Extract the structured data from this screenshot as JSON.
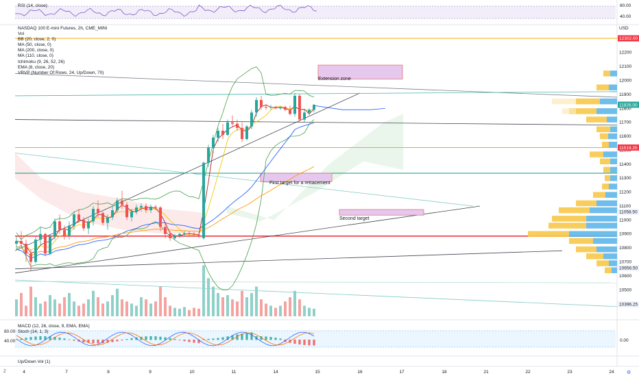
{
  "header": {
    "symbol_title": "NASDAQ 100 E-mini Futures, 2h, CME_MINI",
    "currency": "USD"
  },
  "indicators": [
    "Vol",
    "BB (20, close, 2, 0)",
    "MA (50, close, 0)",
    "MA (200, close, 0)",
    "MA (110, close, 0)",
    "Ichimoku (9, 26, 52, 26)",
    "EMA (8, close, 20)",
    "VRVP (Number Of Rows, 24, Up/Down, 70)"
  ],
  "panes": {
    "rsi_label": "RSI (14, close)",
    "macd_label": "MACD (12, 26, close, 9, EMA, EMA)",
    "stoch_label": "Stoch (14, 1, 3)",
    "updown_label": "Up/Down Vol (1)"
  },
  "annotations": {
    "extension_zone": "Extension zone",
    "first_target": "First target for a retracement",
    "second_target": "Second target"
  },
  "toolbar": {
    "left_glyph": "Z",
    "right_glyph": "⚙"
  },
  "colors": {
    "up": "#26a69a",
    "down": "#ef5350",
    "vol_up": "#8fd1c8",
    "vol_down": "#f4a3a1",
    "zone": "#e6c8ef",
    "zone_border": "#e57373",
    "orange_line": "#f7a800",
    "red_line": "#f23645",
    "teal_line": "#089981",
    "current_price_bg": "#26a69a",
    "vrvp_up": "#5fb6e8",
    "vrvp_down": "#f8c84a"
  },
  "chart_data": [
    {
      "type": "candlestick",
      "title": "NASDAQ 100 E-mini Futures, 2h, CME_MINI",
      "y_axis_ticks": [
        12300,
        12200,
        12100,
        12000,
        11900,
        11800,
        11700,
        11600,
        11500,
        11400,
        11300,
        11200,
        11100,
        11000,
        10900,
        10800,
        10700,
        10600,
        10500,
        10400
      ],
      "ylim": [
        10310,
        12390
      ],
      "x_axis_ticks": [
        "4",
        "7",
        "8",
        "9",
        "10",
        "11",
        "14",
        "15",
        "16",
        "17",
        "18",
        "21",
        "22",
        "23",
        "24"
      ],
      "price_labels": [
        {
          "value": "12302.00",
          "kind": "orange"
        },
        {
          "value": "11826.00",
          "kind": "current"
        },
        {
          "value": "11519.25",
          "kind": "orange"
        },
        {
          "value": "11058.50",
          "kind": "plain"
        },
        {
          "value": "10656.50",
          "kind": "plain"
        },
        {
          "value": "10396.25",
          "kind": "plain"
        }
      ],
      "horizontal_levels": [
        {
          "price": 12302,
          "color": "orange"
        },
        {
          "price": 11519.25,
          "color": "orange"
        },
        {
          "price": 11335,
          "color": "teal"
        },
        {
          "price": 10885,
          "color": "red"
        }
      ],
      "candles": [
        [
          10830,
          10880,
          10790,
          10850
        ],
        [
          10850,
          10920,
          10800,
          10830
        ],
        [
          10830,
          10860,
          10700,
          10760
        ],
        [
          10760,
          10790,
          10640,
          10700
        ],
        [
          10700,
          10880,
          10690,
          10860
        ],
        [
          10860,
          10950,
          10820,
          10900
        ],
        [
          10900,
          10910,
          10740,
          10760
        ],
        [
          10760,
          10900,
          10750,
          10880
        ],
        [
          10880,
          11010,
          10860,
          10990
        ],
        [
          10990,
          11040,
          10900,
          10930
        ],
        [
          10930,
          10960,
          10860,
          10890
        ],
        [
          10890,
          10990,
          10860,
          10960
        ],
        [
          10960,
          11060,
          10930,
          11040
        ],
        [
          11040,
          11080,
          10980,
          11000
        ],
        [
          11000,
          11020,
          10920,
          10940
        ],
        [
          10940,
          11010,
          10900,
          10990
        ],
        [
          10990,
          11100,
          10960,
          11080
        ],
        [
          11080,
          11140,
          11020,
          11050
        ],
        [
          11050,
          11060,
          10960,
          10980
        ],
        [
          10980,
          11040,
          10930,
          11020
        ],
        [
          11020,
          11100,
          11000,
          11070
        ],
        [
          11070,
          11160,
          11050,
          11140
        ],
        [
          11140,
          11210,
          11080,
          11110
        ],
        [
          11110,
          11130,
          11000,
          11020
        ],
        [
          11020,
          11080,
          10990,
          11060
        ],
        [
          11060,
          11110,
          11040,
          11090
        ],
        [
          11090,
          11120,
          11060,
          11100
        ],
        [
          11100,
          11120,
          11050,
          11070
        ],
        [
          11070,
          11110,
          11050,
          11095
        ],
        [
          11095,
          11110,
          11070,
          11090
        ],
        [
          11090,
          11100,
          10920,
          10950
        ],
        [
          10950,
          10980,
          10870,
          10900
        ],
        [
          10900,
          10920,
          10850,
          10870
        ],
        [
          10870,
          10900,
          10860,
          10890
        ],
        [
          10890,
          10910,
          10870,
          10900
        ],
        [
          10900,
          10920,
          10880,
          10905
        ],
        [
          10905,
          10920,
          10880,
          10900
        ],
        [
          10900,
          10915,
          10880,
          10895
        ],
        [
          10895,
          10910,
          10870,
          10890
        ],
        [
          10870,
          11420,
          10860,
          11410
        ],
        [
          11410,
          11540,
          11380,
          11520
        ],
        [
          11520,
          11610,
          11480,
          11590
        ],
        [
          11590,
          11660,
          11560,
          11640
        ],
        [
          11640,
          11690,
          11580,
          11610
        ],
        [
          11610,
          11720,
          11600,
          11700
        ],
        [
          11700,
          11750,
          11670,
          11690
        ],
        [
          11690,
          11720,
          11640,
          11660
        ],
        [
          11660,
          11700,
          11560,
          11580
        ],
        [
          11580,
          11680,
          11570,
          11670
        ],
        [
          11670,
          11790,
          11650,
          11770
        ],
        [
          11770,
          11880,
          11740,
          11860
        ],
        [
          11860,
          11890,
          11790,
          11810
        ],
        [
          11810,
          11830,
          11790,
          11805
        ],
        [
          11805,
          11825,
          11790,
          11810
        ],
        [
          11810,
          11820,
          11795,
          11800
        ],
        [
          11800,
          11815,
          11790,
          11810
        ],
        [
          11810,
          11820,
          11780,
          11790
        ],
        [
          11790,
          11820,
          11750,
          11760
        ],
        [
          11760,
          11910,
          11740,
          11890
        ],
        [
          11890,
          11900,
          11700,
          11720
        ],
        [
          11720,
          11790,
          11700,
          11770
        ],
        [
          11770,
          11800,
          11750,
          11790
        ],
        [
          11790,
          11830,
          11770,
          11826
        ]
      ]
    }
  ]
}
